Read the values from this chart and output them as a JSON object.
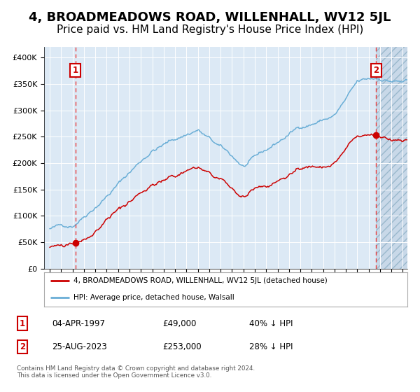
{
  "title": "4, BROADMEADOWS ROAD, WILLENHALL, WV12 5JL",
  "subtitle": "Price paid vs. HM Land Registry's House Price Index (HPI)",
  "title_fontsize": 13,
  "subtitle_fontsize": 11,
  "background_color": "#ffffff",
  "plot_bg_color": "#dce9f5",
  "hatch_bg_color": "#c8d8e8",
  "ylim": [
    0,
    420000
  ],
  "yticks": [
    0,
    50000,
    100000,
    150000,
    200000,
    250000,
    300000,
    350000,
    400000
  ],
  "ytick_labels": [
    "£0",
    "£50K",
    "£100K",
    "£150K",
    "£200K",
    "£250K",
    "£300K",
    "£350K",
    "£400K"
  ],
  "x_start_year": 1995,
  "x_end_year": 2026,
  "xtick_years": [
    1995,
    1996,
    1997,
    1998,
    1999,
    2000,
    2001,
    2002,
    2003,
    2004,
    2005,
    2006,
    2007,
    2008,
    2009,
    2010,
    2011,
    2012,
    2013,
    2014,
    2015,
    2016,
    2017,
    2018,
    2019,
    2020,
    2021,
    2022,
    2023,
    2024,
    2025,
    2026
  ],
  "sale1_year": 1997.25,
  "sale1_price": 49000,
  "sale1_label": "1",
  "sale2_year": 2023.65,
  "sale2_price": 253000,
  "sale2_label": "2",
  "hpi_color": "#6aaed6",
  "price_color": "#cc0000",
  "dashed_line_color": "#e84040",
  "legend_label_price": "4, BROADMEADOWS ROAD, WILLENHALL, WV12 5JL (detached house)",
  "legend_label_hpi": "HPI: Average price, detached house, Walsall",
  "footer_text": "Contains HM Land Registry data © Crown copyright and database right 2024.\nThis data is licensed under the Open Government Licence v3.0.",
  "table_row1": [
    "1",
    "04-APR-1997",
    "£49,000",
    "40% ↓ HPI"
  ],
  "table_row2": [
    "2",
    "25-AUG-2023",
    "£253,000",
    "28% ↓ HPI"
  ]
}
